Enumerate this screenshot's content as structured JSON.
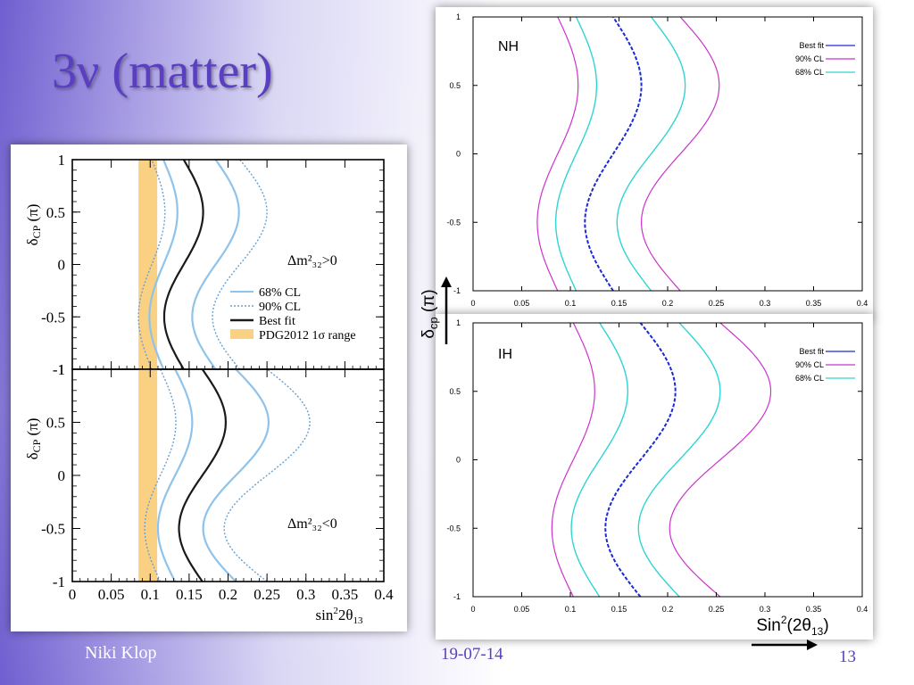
{
  "slide": {
    "title": "3ν (matter)",
    "footer_author": "Niki Klop",
    "footer_date": "19-07-14",
    "page_number": "13",
    "ylabel_main": "δ",
    "ylabel_sub": "cp",
    "ylabel_unit": " (π)",
    "xlabel_prefix": "Sin",
    "xlabel_sup": "2",
    "xlabel_mid": "(2θ",
    "xlabel_sub": "13",
    "xlabel_suffix": ")"
  },
  "colors": {
    "title": "#5a3fc0",
    "best_fit_blue": "#1a2ad4",
    "cl90_magenta": "#cc33cc",
    "cl68_cyan": "#2fd4d4",
    "left_best": "#1a1a1a",
    "left_68": "#8fc3ea",
    "left_90": "#6a9fd0",
    "pdg_band": "#fad183"
  },
  "chart_data": [
    {
      "id": "left-top",
      "type": "line",
      "xlim": [
        0,
        0.4
      ],
      "ylim": [
        -1,
        1
      ],
      "ylabel": "δCP (π)",
      "x_ticks": [
        "0",
        "0.05",
        "0.1",
        "0.15",
        "0.2",
        "0.25",
        "0.3",
        "0.35",
        "0.4"
      ],
      "y_ticks": [
        "-1",
        "-0.5",
        "0",
        "0.5",
        "1"
      ],
      "annotation": "Δm²₃₂>0",
      "legend": [
        "68% CL",
        "90% CL",
        "Best fit",
        "PDG2012 1σ range"
      ],
      "band": {
        "name": "PDG2012 1σ range",
        "x0": 0.085,
        "x1": 0.109
      },
      "curves": [
        {
          "name": "Best fit",
          "style": "solid",
          "mid": 0.143,
          "amp": 0.025,
          "phase": 0.5
        },
        {
          "name": "68% CL",
          "style": "solid",
          "mid": 0.117,
          "amp": 0.018,
          "phase": 0.5
        },
        {
          "name": "68% CL",
          "style": "solid",
          "mid": 0.184,
          "amp": 0.03,
          "phase": 0.5
        },
        {
          "name": "90% CL",
          "style": "dotted",
          "mid": 0.102,
          "amp": 0.017,
          "phase": 0.5
        },
        {
          "name": "90% CL",
          "style": "dotted",
          "mid": 0.215,
          "amp": 0.035,
          "phase": 0.5
        }
      ]
    },
    {
      "id": "left-bottom",
      "type": "line",
      "xlim": [
        0,
        0.4
      ],
      "ylim": [
        -1,
        1
      ],
      "xlabel": "sin²2θ₁₃",
      "ylabel": "δCP (π)",
      "x_ticks": [
        "0",
        "0.05",
        "0.1",
        "0.15",
        "0.2",
        "0.25",
        "0.3",
        "0.35",
        "0.4"
      ],
      "y_ticks": [
        "-1",
        "-0.5",
        "0",
        "0.5",
        "1"
      ],
      "annotation": "Δm²₃₂<0",
      "band": {
        "name": "PDG2012 1σ range",
        "x0": 0.085,
        "x1": 0.109
      },
      "curves": [
        {
          "name": "Best fit",
          "style": "solid",
          "mid": 0.167,
          "amp": 0.03,
          "phase": 0.5
        },
        {
          "name": "68% CL",
          "style": "solid",
          "mid": 0.132,
          "amp": 0.022,
          "phase": 0.5
        },
        {
          "name": "68% CL",
          "style": "solid",
          "mid": 0.21,
          "amp": 0.042,
          "phase": 0.5
        },
        {
          "name": "90% CL",
          "style": "dotted",
          "mid": 0.113,
          "amp": 0.02,
          "phase": 0.5
        },
        {
          "name": "90% CL",
          "style": "dotted",
          "mid": 0.25,
          "amp": 0.055,
          "phase": 0.5
        }
      ]
    },
    {
      "id": "nh",
      "type": "line",
      "xlim": [
        0,
        0.4
      ],
      "ylim": [
        -1,
        1
      ],
      "x_ticks": [
        "0",
        "0.05",
        "0.1",
        "0.15",
        "0.2",
        "0.25",
        "0.3",
        "0.35",
        "0.4"
      ],
      "y_ticks": [
        "-1",
        "-0.5",
        "0",
        "0.5",
        "1"
      ],
      "annotation": "NH",
      "legend": [
        "Best fit",
        "90% CL",
        "68% CL"
      ],
      "curves": [
        {
          "name": "Best fit",
          "style": "dashed",
          "mid": 0.144,
          "amp": 0.029,
          "phase": 0.5
        },
        {
          "name": "90% CL",
          "style": "solid",
          "mid": 0.087,
          "amp": 0.021,
          "phase": 0.5
        },
        {
          "name": "90% CL",
          "style": "solid",
          "mid": 0.213,
          "amp": 0.04,
          "phase": 0.5
        },
        {
          "name": "68% CL",
          "style": "solid",
          "mid": 0.106,
          "amp": 0.021,
          "phase": 0.5
        },
        {
          "name": "68% CL",
          "style": "solid",
          "mid": 0.183,
          "amp": 0.035,
          "phase": 0.5
        }
      ]
    },
    {
      "id": "ih",
      "type": "line",
      "xlim": [
        0,
        0.4
      ],
      "ylim": [
        -1,
        1
      ],
      "x_ticks": [
        "0",
        "0.05",
        "0.1",
        "0.15",
        "0.2",
        "0.25",
        "0.3",
        "0.35",
        "0.4"
      ],
      "y_ticks": [
        "-1",
        "-0.5",
        "0",
        "0.5",
        "1"
      ],
      "annotation": "IH",
      "legend": [
        "Best fit",
        "90% CL",
        "68% CL"
      ],
      "curves": [
        {
          "name": "Best fit",
          "style": "dashed",
          "mid": 0.172,
          "amp": 0.036,
          "phase": 0.5
        },
        {
          "name": "90% CL",
          "style": "solid",
          "mid": 0.103,
          "amp": 0.022,
          "phase": 0.5
        },
        {
          "name": "90% CL",
          "style": "solid",
          "mid": 0.254,
          "amp": 0.052,
          "phase": 0.5
        },
        {
          "name": "68% CL",
          "style": "solid",
          "mid": 0.13,
          "amp": 0.029,
          "phase": 0.5
        },
        {
          "name": "68% CL",
          "style": "solid",
          "mid": 0.212,
          "amp": 0.042,
          "phase": 0.5
        }
      ]
    }
  ]
}
